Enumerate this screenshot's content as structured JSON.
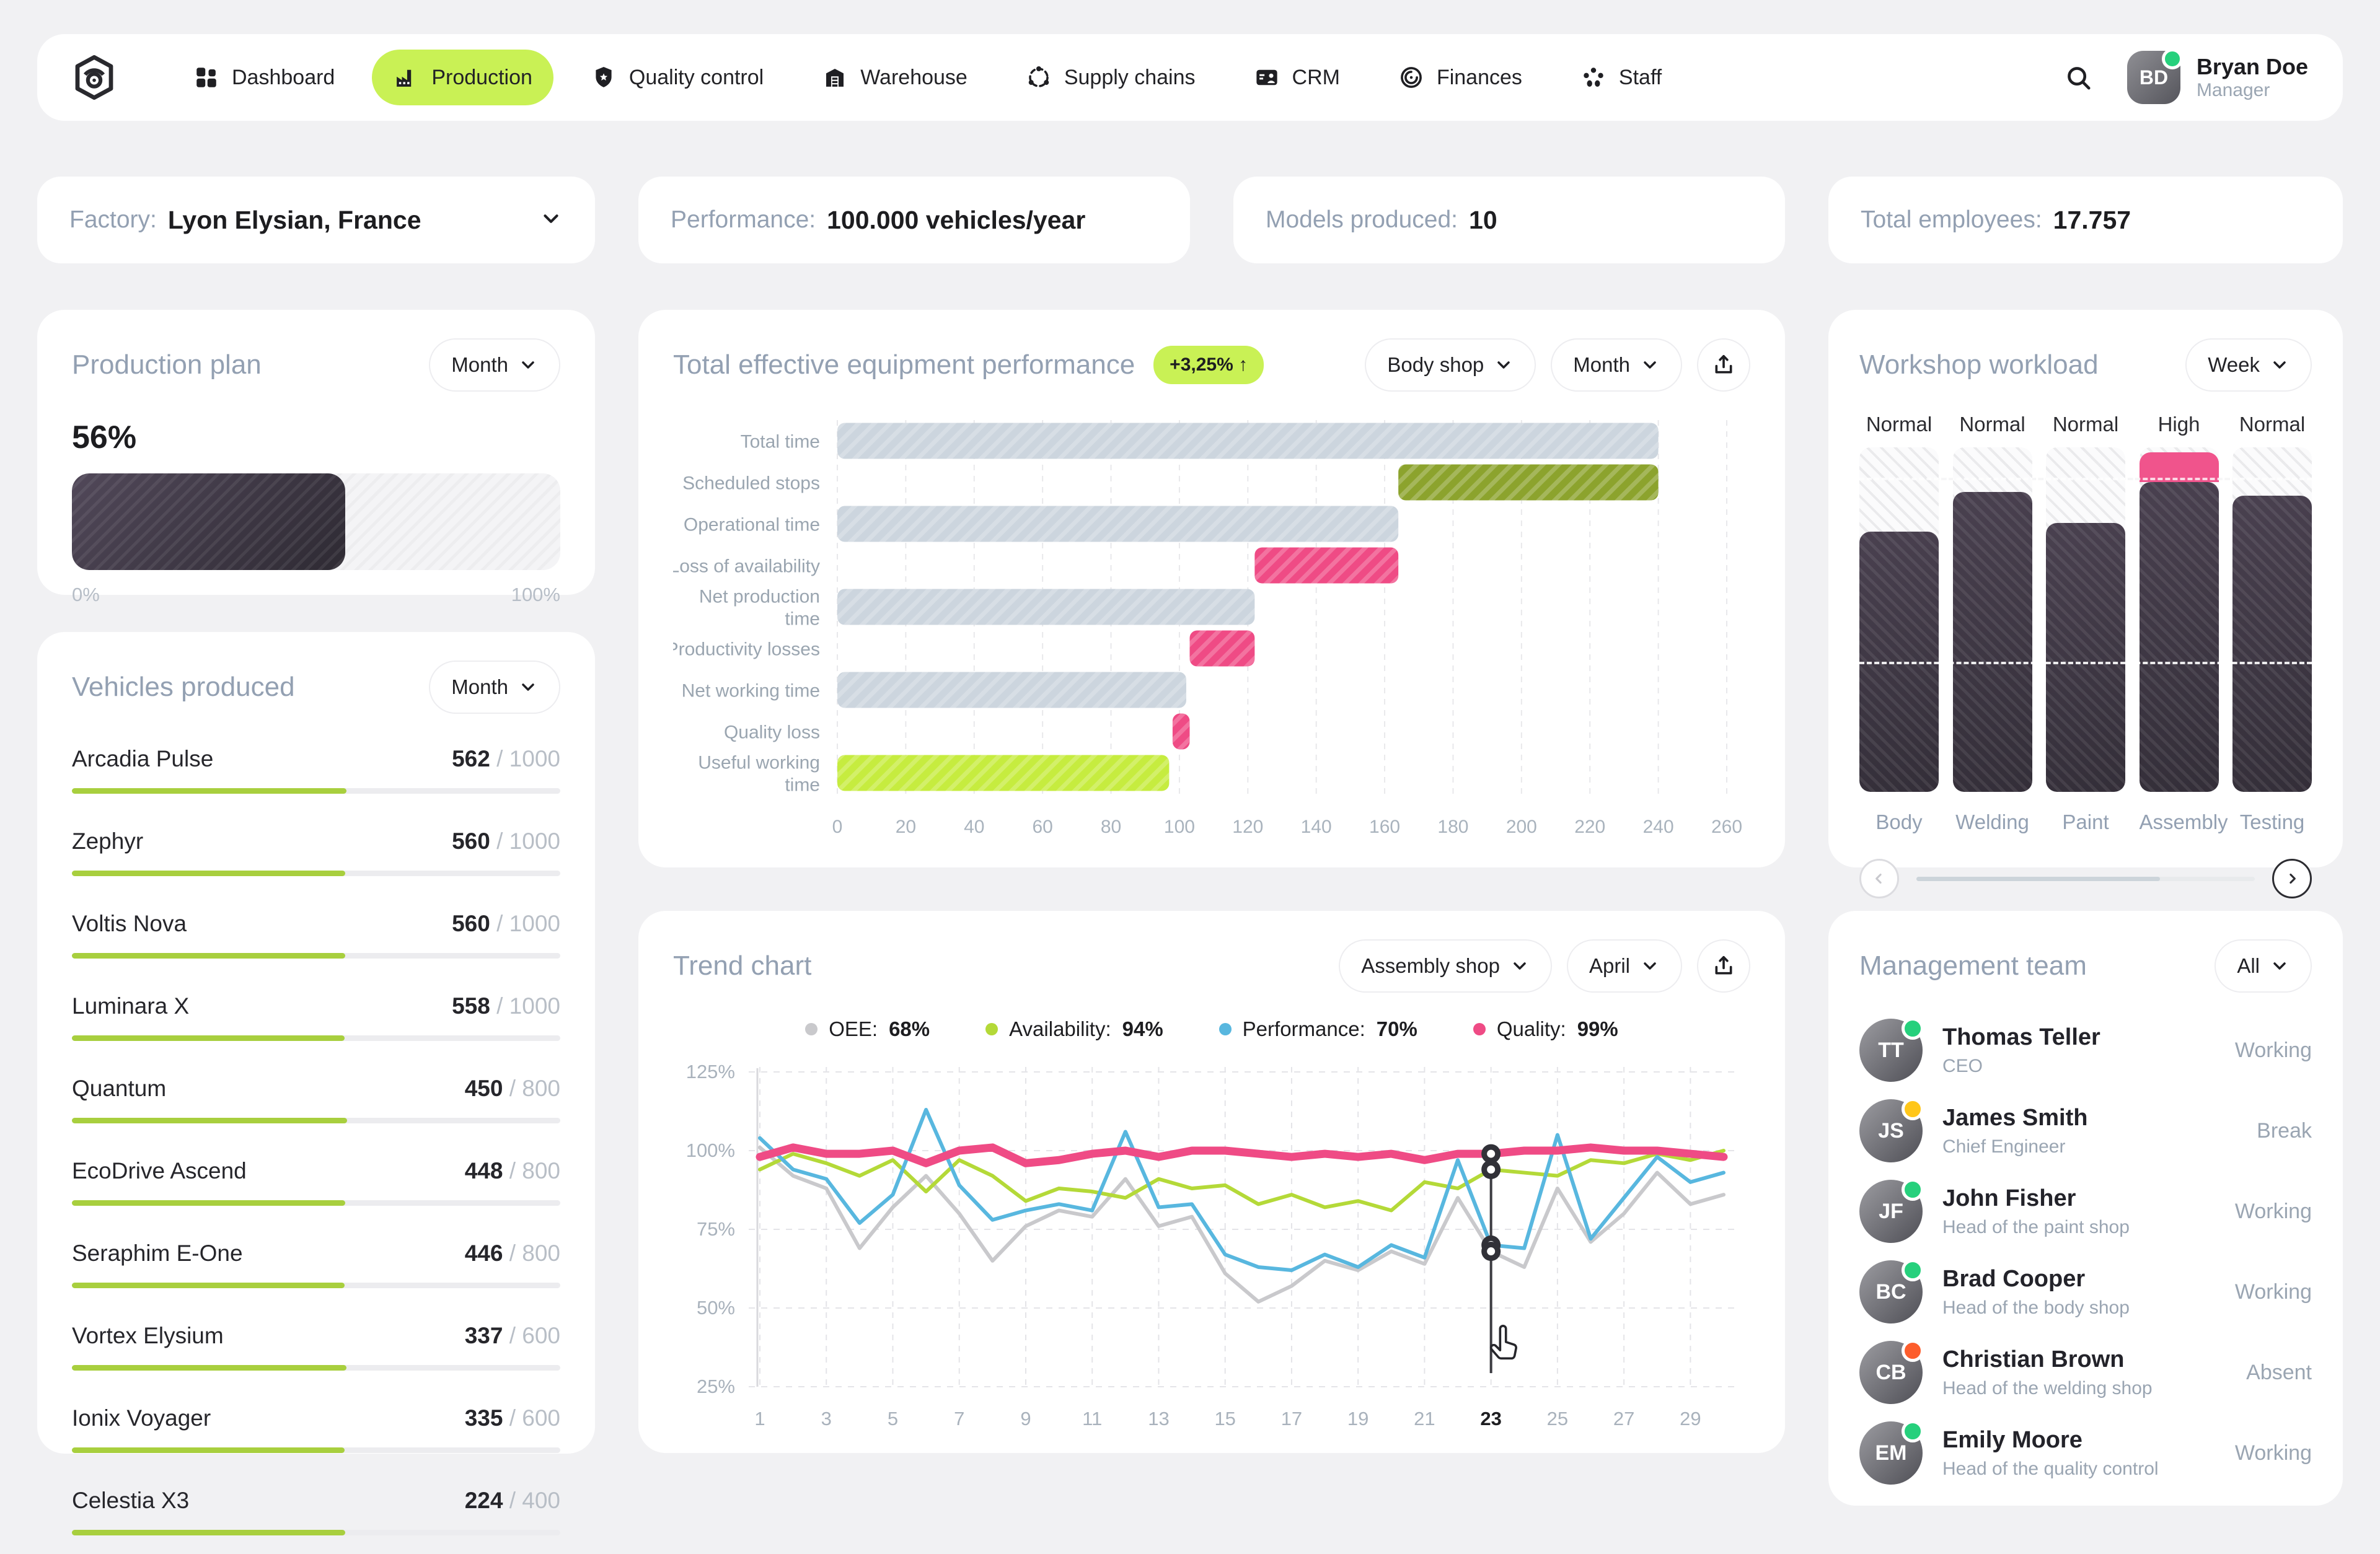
{
  "colors": {
    "accent_lime": "#c9f155",
    "bar_lime": "#a8cf3e",
    "chart_lime": "#c6ec3f",
    "olive": "#8ca32d",
    "pink": "#ef4b85",
    "blue": "#58b7df",
    "gray_bar": "#ccd5de",
    "line_gray": "#c9c9cc",
    "dark": "#1d1d20",
    "muted": "#93a0b2",
    "green_dot": "#26d07c",
    "yellow_dot": "#ffc61a",
    "orange_dot": "#fd5d2c"
  },
  "nav": {
    "items": [
      {
        "label": "Dashboard",
        "icon": "grid-icon",
        "active": false
      },
      {
        "label": "Production",
        "icon": "factory-icon",
        "active": true
      },
      {
        "label": "Quality control",
        "icon": "shield-icon",
        "active": false
      },
      {
        "label": "Warehouse",
        "icon": "warehouse-icon",
        "active": false
      },
      {
        "label": "Supply chains",
        "icon": "supply-chain-icon",
        "active": false
      },
      {
        "label": "CRM",
        "icon": "crm-icon",
        "active": false
      },
      {
        "label": "Finances",
        "icon": "finances-icon",
        "active": false
      },
      {
        "label": "Staff",
        "icon": "staff-icon",
        "active": false
      }
    ],
    "user": {
      "name": "Bryan Doe",
      "role": "Manager",
      "initials": "BD",
      "online": true
    }
  },
  "stats": [
    {
      "label": "Factory:",
      "value": "Lyon Elysian, France",
      "dropdown": true
    },
    {
      "label": "Performance:",
      "value": "100.000 vehicles/year",
      "dropdown": false
    },
    {
      "label": "Models produced:",
      "value": "10",
      "dropdown": false
    },
    {
      "label": "Total employees:",
      "value": "17.757",
      "dropdown": false
    }
  ],
  "production_plan": {
    "title": "Production plan",
    "period": "Month",
    "percent": "56%",
    "pct": 56,
    "scale_min": "0%",
    "scale_max": "100%"
  },
  "vehicles": {
    "title": "Vehicles produced",
    "period": "Month",
    "items": [
      {
        "name": "Arcadia Pulse",
        "produced": 562,
        "target": 1000
      },
      {
        "name": "Zephyr",
        "produced": 560,
        "target": 1000
      },
      {
        "name": "Voltis Nova",
        "produced": 560,
        "target": 1000
      },
      {
        "name": "Luminara X",
        "produced": 558,
        "target": 1000
      },
      {
        "name": "Quantum",
        "produced": 450,
        "target": 800
      },
      {
        "name": "EcoDrive Ascend",
        "produced": 448,
        "target": 800
      },
      {
        "name": "Seraphim E-One",
        "produced": 446,
        "target": 800
      },
      {
        "name": "Vortex Elysium",
        "produced": 337,
        "target": 600
      },
      {
        "name": "Ionix Voyager",
        "produced": 335,
        "target": 600
      },
      {
        "name": "Celestia X3",
        "produced": 224,
        "target": 400
      }
    ]
  },
  "teep": {
    "title": "Total effective equipment performance",
    "badge": "+3,25%",
    "shop_filter": "Body shop",
    "period_filter": "Month",
    "chart_data": {
      "type": "bar",
      "orientation": "horizontal",
      "xlim": [
        0,
        260
      ],
      "tick_step": 20,
      "rows": [
        {
          "label": [
            "Total time"
          ],
          "start": 0,
          "end": 240,
          "color": "gray"
        },
        {
          "label": [
            "Scheduled stops"
          ],
          "start": 164,
          "end": 240,
          "color": "olive"
        },
        {
          "label": [
            "Operational time"
          ],
          "start": 0,
          "end": 164,
          "color": "gray"
        },
        {
          "label": [
            "Loss of availability"
          ],
          "start": 122,
          "end": 164,
          "color": "pink"
        },
        {
          "label": [
            "Net production",
            "time"
          ],
          "start": 0,
          "end": 122,
          "color": "gray"
        },
        {
          "label": [
            "Productivity losses"
          ],
          "start": 103,
          "end": 122,
          "color": "pink"
        },
        {
          "label": [
            "Net working time"
          ],
          "start": 0,
          "end": 102,
          "color": "gray"
        },
        {
          "label": [
            "Quality loss"
          ],
          "start": 98,
          "end": 103,
          "color": "pink"
        },
        {
          "label": [
            "Useful working",
            "time"
          ],
          "start": 0,
          "end": 97,
          "color": "lime"
        }
      ]
    }
  },
  "workload": {
    "title": "Workshop workload",
    "period": "Week",
    "chart_data": {
      "type": "bar",
      "threshold_pct": 90.5,
      "midline_pct": 37,
      "scroll_pct": 72,
      "columns": [
        {
          "name": "Body",
          "status": "Normal",
          "value": 75.5,
          "over": 0
        },
        {
          "name": "Welding",
          "status": "Normal",
          "value": 87,
          "over": 0
        },
        {
          "name": "Paint",
          "status": "Normal",
          "value": 78,
          "over": 0
        },
        {
          "name": "Assembly",
          "status": "High",
          "value": 90,
          "over": 97
        },
        {
          "name": "Testing",
          "status": "Normal",
          "value": 86,
          "over": 0
        }
      ]
    }
  },
  "trend": {
    "title": "Trend chart",
    "shop_filter": "Assembly shop",
    "period_filter": "April",
    "legend": [
      {
        "label": "OEE:",
        "value": "68%",
        "color": "#c9c9cc"
      },
      {
        "label": "Availability:",
        "value": "94%",
        "color": "#b4d938"
      },
      {
        "label": "Performance:",
        "value": "70%",
        "color": "#58b7df"
      },
      {
        "label": "Quality:",
        "value": "99%",
        "color": "#ef4b85"
      }
    ],
    "selected_day": 23,
    "chart_data": {
      "type": "line",
      "ylim": [
        25,
        125
      ],
      "yticks": [
        "125%",
        "100%",
        "75%",
        "50%",
        "25%"
      ],
      "ytick_values": [
        125,
        100,
        75,
        50,
        25
      ],
      "x": [
        1,
        2,
        3,
        4,
        5,
        6,
        7,
        8,
        9,
        10,
        11,
        12,
        13,
        14,
        15,
        16,
        17,
        18,
        19,
        20,
        21,
        22,
        23,
        24,
        25,
        26,
        27,
        28,
        29,
        30
      ],
      "xtick_labels": [
        1,
        3,
        5,
        7,
        9,
        11,
        13,
        15,
        17,
        19,
        21,
        23,
        25,
        27,
        29
      ],
      "series": [
        {
          "name": "OEE",
          "color": "#c9c9cc",
          "width": 6,
          "values": [
            101,
            92,
            88,
            69,
            82,
            92,
            80,
            65,
            76,
            81,
            79,
            91,
            76,
            79,
            61,
            52,
            57,
            65,
            62,
            68,
            64,
            85,
            68,
            63,
            88,
            71,
            80,
            93,
            83,
            86
          ]
        },
        {
          "name": "Availability",
          "color": "#b4d938",
          "width": 6,
          "values": [
            94,
            99,
            96,
            92,
            97,
            87,
            97,
            92,
            84,
            88,
            87,
            85,
            91,
            88,
            89,
            83,
            86,
            82,
            84,
            81,
            90,
            88,
            94,
            93,
            92,
            97,
            96,
            99,
            97,
            100
          ]
        },
        {
          "name": "Performance",
          "color": "#58b7df",
          "width": 6,
          "values": [
            104,
            94,
            91,
            77,
            86,
            113,
            89,
            78,
            81,
            83,
            81,
            106,
            82,
            83,
            67,
            63,
            62,
            67,
            63,
            70,
            66,
            97,
            70,
            69,
            105,
            72,
            85,
            98,
            90,
            93
          ]
        },
        {
          "name": "Quality",
          "color": "#ef4b85",
          "width": 13,
          "values": [
            98,
            101,
            99,
            99,
            100,
            96,
            100,
            101,
            96,
            97,
            99,
            100,
            98,
            100,
            100,
            99,
            98,
            99,
            98,
            99,
            97,
            99,
            99,
            100,
            100,
            101,
            100,
            100,
            99,
            98
          ]
        }
      ]
    }
  },
  "team": {
    "title": "Management team",
    "filter": "All",
    "members": [
      {
        "name": "Thomas Teller",
        "role": "CEO",
        "status": "Working",
        "dot": "green"
      },
      {
        "name": "James Smith",
        "role": "Chief Engineer",
        "status": "Break",
        "dot": "yellow"
      },
      {
        "name": "John Fisher",
        "role": "Head of the paint shop",
        "status": "Working",
        "dot": "green"
      },
      {
        "name": "Brad Cooper",
        "role": "Head of the body shop",
        "status": "Working",
        "dot": "green"
      },
      {
        "name": "Christian Brown",
        "role": "Head of the welding shop",
        "status": "Absent",
        "dot": "orange"
      },
      {
        "name": "Emily Moore",
        "role": "Head of the quality control",
        "status": "Working",
        "dot": "green"
      }
    ]
  }
}
